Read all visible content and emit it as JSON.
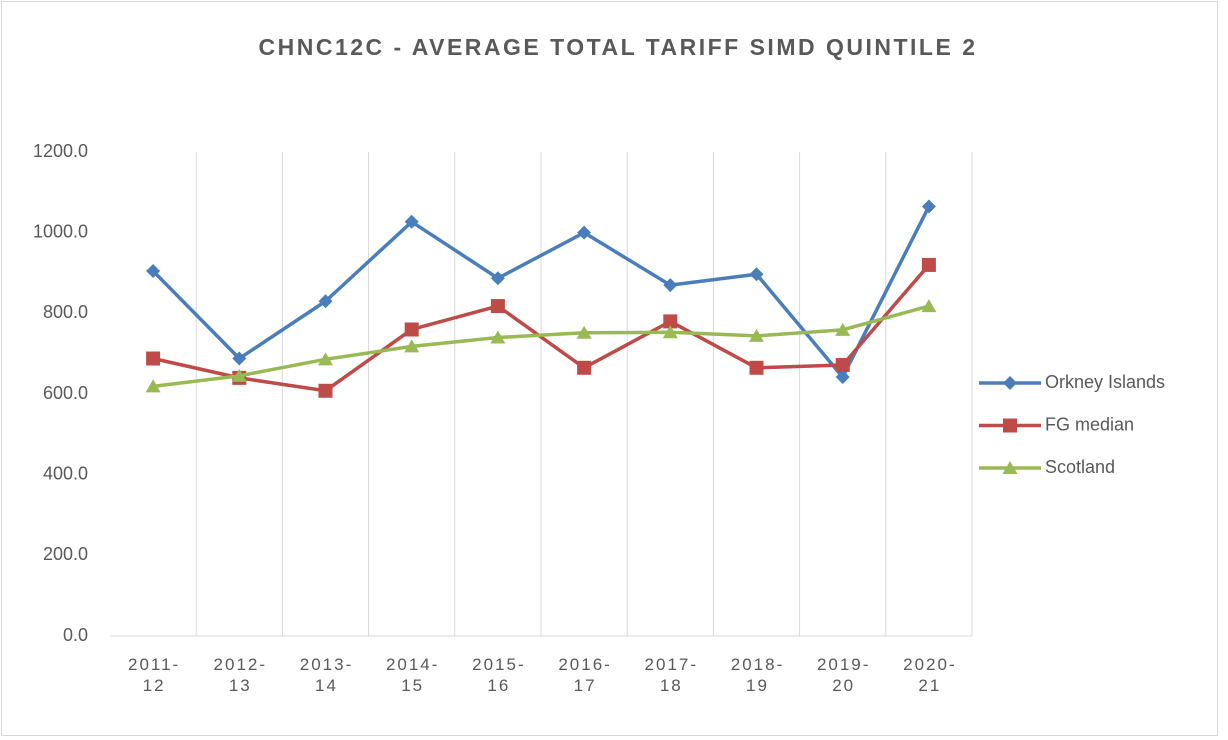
{
  "chart_data": {
    "type": "line",
    "title": "CHNC12C - AVERAGE TOTAL TARIFF SIMD QUINTILE 2",
    "categories": [
      "2011-12",
      "2012-13",
      "2013-14",
      "2014-15",
      "2015-16",
      "2016-17",
      "2017-18",
      "2018-19",
      "2019-20",
      "2020-21"
    ],
    "series": [
      {
        "name": "Orkney Islands",
        "color": "#4a7ebb",
        "marker": "diamond",
        "values": [
          905,
          688,
          830,
          1027,
          887,
          1000,
          870,
          897,
          642,
          1065
        ]
      },
      {
        "name": "FG median",
        "color": "#be4b48",
        "marker": "square",
        "values": [
          688,
          640,
          608,
          760,
          818,
          665,
          780,
          665,
          672,
          920
        ]
      },
      {
        "name": "Scotland",
        "color": "#98b954",
        "marker": "triangle",
        "values": [
          619,
          645,
          686,
          718,
          740,
          752,
          753,
          744,
          759,
          818
        ]
      }
    ],
    "ylim": [
      0,
      1200
    ],
    "yticks": [
      {
        "value": 0,
        "label": "0.0"
      },
      {
        "value": 200,
        "label": "200.0"
      },
      {
        "value": 400,
        "label": "400.0"
      },
      {
        "value": 600,
        "label": "600.0"
      },
      {
        "value": 800,
        "label": "800.0"
      },
      {
        "value": 1000,
        "label": "1000.0"
      },
      {
        "value": 1200,
        "label": "1200.0"
      }
    ],
    "legend": "right"
  }
}
